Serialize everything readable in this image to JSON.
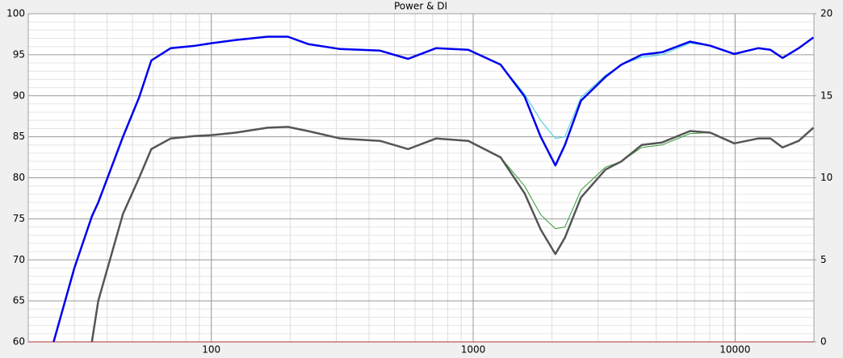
{
  "chart_data": {
    "type": "line",
    "title": "Power & DI",
    "x": [
      25,
      30,
      35,
      37,
      46,
      53,
      59,
      70,
      87,
      100,
      124,
      164,
      196,
      234,
      310,
      441,
      564,
      722,
      958,
      1272,
      1572,
      1810,
      2060,
      2240,
      2580,
      3200,
      3680,
      4400,
      5260,
      6730,
      8040,
      9930,
      12280,
      13650,
      15170,
      17500,
      19900
    ],
    "series": [
      {
        "color": "#33ccdd",
        "width": 1,
        "values": [
          60,
          69,
          75.3,
          77,
          85,
          89.8,
          94.3,
          95.8,
          96.1,
          96.4,
          96.8,
          97.2,
          97.2,
          96.3,
          95.7,
          95.5,
          94.5,
          95.8,
          95.6,
          93.8,
          90.2,
          87,
          84.8,
          85,
          89.8,
          92.5,
          93.8,
          94.7,
          95,
          96.4,
          96.1,
          95.1,
          95.8,
          95.6,
          94.6,
          95.8,
          97.1
        ]
      },
      {
        "color": "#0000ee",
        "width": 2.5,
        "values": [
          60,
          69,
          75.3,
          77,
          85,
          89.8,
          94.3,
          95.8,
          96.1,
          96.4,
          96.8,
          97.2,
          97.2,
          96.3,
          95.7,
          95.5,
          94.5,
          95.8,
          95.6,
          93.8,
          89.9,
          85,
          81.5,
          84,
          89.4,
          92.3,
          93.8,
          95,
          95.3,
          96.6,
          96.1,
          95.1,
          95.8,
          95.6,
          94.6,
          95.8,
          97.1
        ]
      },
      {
        "color": "#339933",
        "width": 1,
        "values": [
          null,
          null,
          60,
          65,
          75.6,
          80,
          83.5,
          84.8,
          85.1,
          85.2,
          85.5,
          86.1,
          86.2,
          85.7,
          84.8,
          84.5,
          83.5,
          84.8,
          84.5,
          82.5,
          79,
          75.5,
          73.8,
          74,
          78.5,
          81.3,
          82,
          83.7,
          84,
          85.4,
          85.5,
          84.2,
          84.8,
          84.8,
          83.7,
          84.5,
          86.1
        ]
      },
      {
        "color": "#555555",
        "width": 2.5,
        "values": [
          null,
          null,
          60,
          65,
          75.6,
          80,
          83.5,
          84.8,
          85.1,
          85.2,
          85.5,
          86.1,
          86.2,
          85.7,
          84.8,
          84.5,
          83.5,
          84.8,
          84.5,
          82.5,
          78.1,
          73.7,
          70.7,
          72.7,
          77.6,
          81,
          82,
          84,
          84.3,
          85.7,
          85.5,
          84.2,
          84.8,
          84.8,
          83.7,
          84.5,
          86.1
        ]
      }
    ],
    "xlim": [
      20,
      20000
    ],
    "xticks": [
      100,
      1000,
      10000
    ],
    "log_x": true,
    "ylim": [
      60,
      100
    ],
    "yticks": [
      60,
      65,
      70,
      75,
      80,
      85,
      90,
      95,
      100
    ],
    "y2lim": [
      0,
      20
    ],
    "y2ticks": [
      0,
      5,
      10,
      15,
      20
    ],
    "grid": true
  }
}
